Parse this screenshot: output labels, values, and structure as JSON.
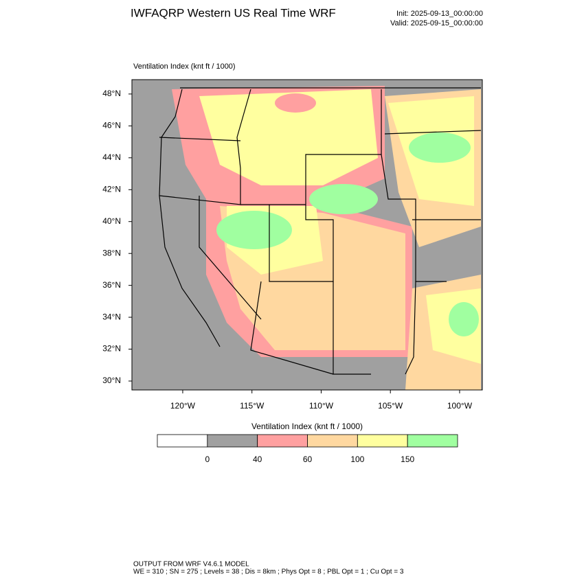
{
  "header": {
    "title": "IWFAQRP Western US Real Time WRF",
    "init": "Init: 2025-09-13_00:00:00",
    "valid": "Valid: 2025-09-15_00:00:00"
  },
  "map": {
    "label": "Ventilation Index   (knt ft / 1000)",
    "xlim": [
      -123.67,
      -98.36
    ],
    "ylim": [
      29.44,
      48.9
    ],
    "yticks": [
      {
        "value": 30,
        "label": "30°N"
      },
      {
        "value": 32,
        "label": "32°N"
      },
      {
        "value": 34,
        "label": "34°N"
      },
      {
        "value": 36,
        "label": "36°N"
      },
      {
        "value": 38,
        "label": "38°N"
      },
      {
        "value": 40,
        "label": "40°N"
      },
      {
        "value": 42,
        "label": "42°N"
      },
      {
        "value": 44,
        "label": "44°N"
      },
      {
        "value": 46,
        "label": "46°N"
      },
      {
        "value": 48,
        "label": "48°N"
      }
    ],
    "xticks": [
      {
        "value": -120,
        "label": "120°W"
      },
      {
        "value": -115,
        "label": "115°W"
      },
      {
        "value": -110,
        "label": "110°W"
      },
      {
        "value": -105,
        "label": "105°W"
      },
      {
        "value": -100,
        "label": "100°W"
      }
    ]
  },
  "colorbar": {
    "title": "Ventilation Index   (knt ft / 1000)",
    "levels": [
      0,
      40,
      60,
      100,
      150
    ],
    "colors": [
      "#ffffff",
      "#a0a0a0",
      "#ffa0a0",
      "#ffd8a0",
      "#ffff9f",
      "#a0ffa0"
    ]
  },
  "footer": {
    "line1": "OUTPUT FROM WRF V4.6.1 MODEL",
    "line2": "WE = 310 ; SN = 275 ; Levels = 38 ; Dis = 8km ; Phys Opt = 8 ; PBL Opt = 1 ; Cu Opt = 3"
  }
}
